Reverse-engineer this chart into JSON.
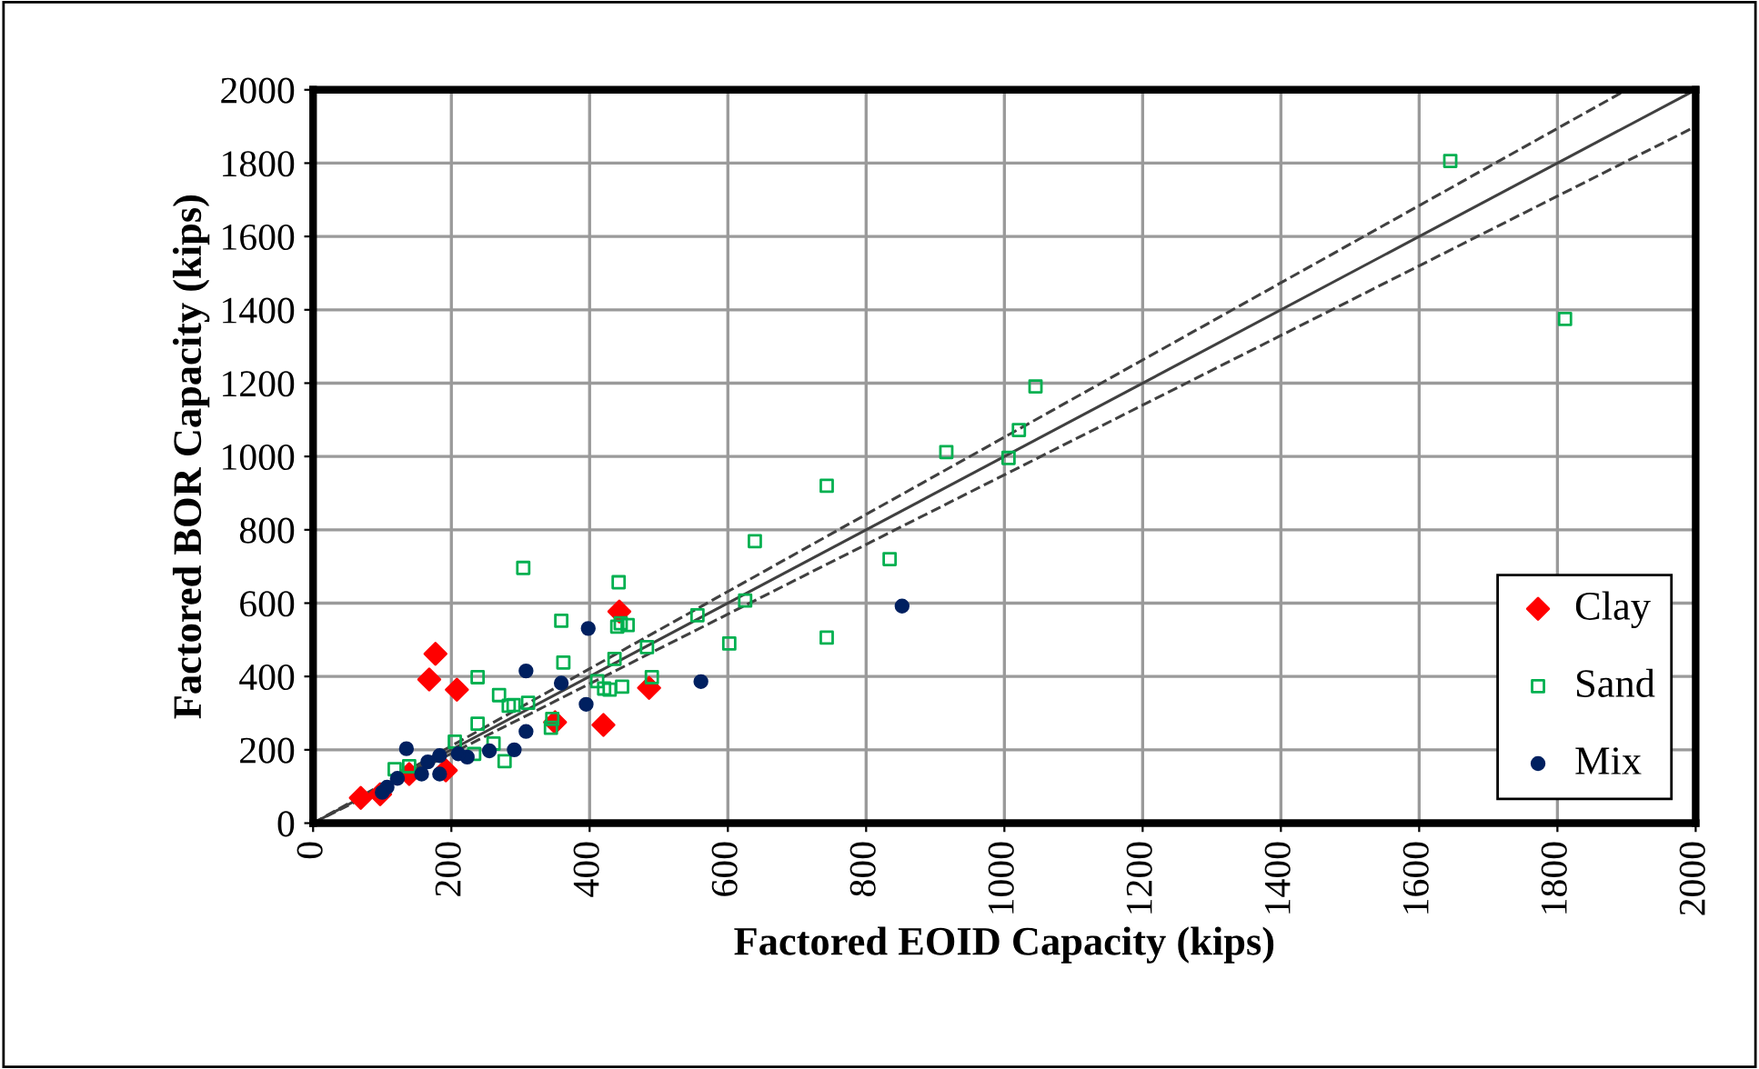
{
  "chart_data": {
    "type": "scatter",
    "xlabel": "Factored EOID Capacity (kips)",
    "ylabel": "Factored BOR Capacity (kips)",
    "xlim": [
      0,
      2000
    ],
    "ylim": [
      0,
      2000
    ],
    "xticks": [
      0,
      200,
      400,
      600,
      800,
      1000,
      1200,
      1400,
      1600,
      1800,
      2000
    ],
    "yticks": [
      0,
      200,
      400,
      600,
      800,
      1000,
      1200,
      1400,
      1600,
      1800,
      2000
    ],
    "grid": true,
    "legend": "bottom right",
    "series": [
      {
        "type": "line",
        "color": "#404040",
        "line_style": "solid",
        "marker": "none",
        "x": [
          0,
          2000
        ],
        "values": [
          0,
          2000
        ]
      },
      {
        "type": "line",
        "color": "#404040",
        "line_style": "dashed",
        "marker": "none",
        "x": [
          0,
          1900
        ],
        "values": [
          0,
          2000
        ]
      },
      {
        "type": "line",
        "color": "#404040",
        "line_style": "dashed",
        "marker": "none",
        "x": [
          0,
          2000
        ],
        "values": [
          0,
          1900
        ]
      },
      {
        "name": "Clay",
        "color": "#ff0000",
        "marker": "diamond",
        "x": [
          177,
          168,
          208,
          443,
          486,
          350,
          420,
          192,
          139,
          97,
          69
        ],
        "values": [
          462,
          392,
          364,
          577,
          369,
          275,
          268,
          144,
          134,
          79,
          69
        ]
      },
      {
        "name": "Sand",
        "color": "#00b050",
        "marker": "square",
        "x": [
          304,
          442,
          359,
          445,
          455,
          440,
          362,
          436,
          238,
          490,
          269,
          411,
          421,
          447,
          283,
          290,
          311,
          346,
          344,
          238,
          205,
          261,
          233,
          277,
          118,
          139,
          916,
          743,
          639,
          834,
          625,
          556,
          602,
          743,
          483,
          429,
          1811,
          1045,
          1021,
          1006,
          1645
        ],
        "values": [
          696,
          657,
          552,
          545,
          540,
          536,
          438,
          448,
          398,
          398,
          349,
          387,
          367,
          372,
          320,
          322,
          328,
          284,
          260,
          271,
          222,
          217,
          189,
          169,
          147,
          155,
          1012,
          920,
          769,
          720,
          607,
          567,
          490,
          506,
          480,
          364,
          1375,
          1191,
          1072,
          996,
          1806
        ]
      },
      {
        "name": "Mix",
        "color": "#002060",
        "marker": "circle",
        "x": [
          398,
          308,
          359,
          395,
          308,
          291,
          255,
          135,
          223,
          210,
          183,
          166,
          183,
          157,
          122,
          107,
          100,
          561,
          852
        ],
        "values": [
          531,
          415,
          382,
          324,
          250,
          200,
          197,
          203,
          180,
          189,
          184,
          167,
          134,
          134,
          122,
          98,
          84,
          386,
          592
        ]
      }
    ]
  }
}
